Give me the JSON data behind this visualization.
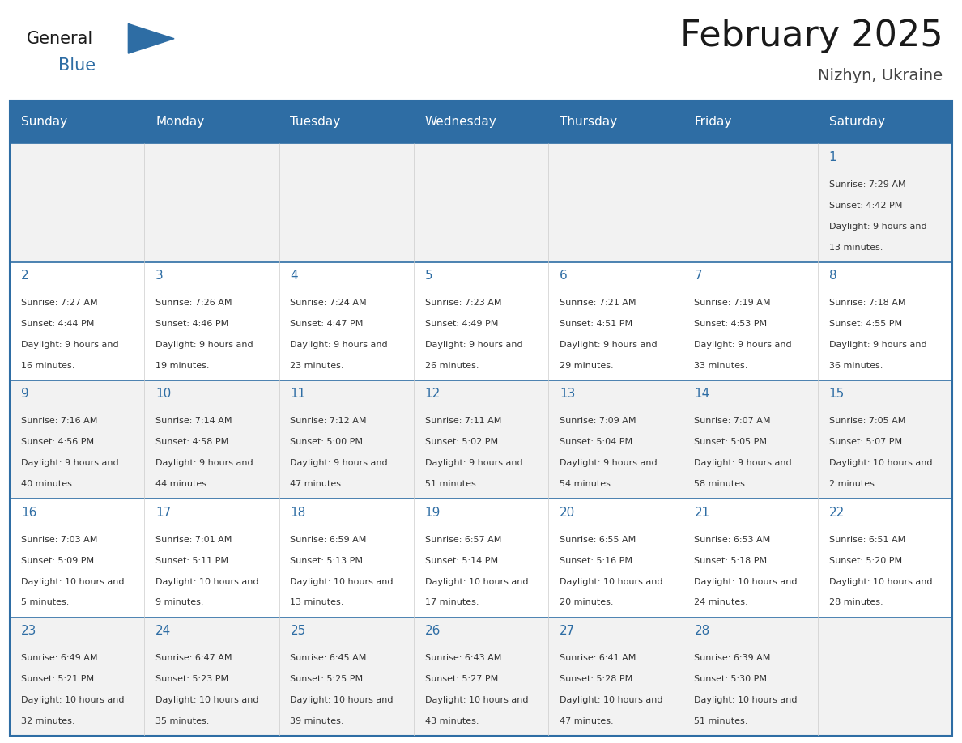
{
  "title": "February 2025",
  "subtitle": "Nizhyn, Ukraine",
  "header_bg": "#2E6DA4",
  "header_text_color": "#FFFFFF",
  "border_color": "#2E6DA4",
  "day_headers": [
    "Sunday",
    "Monday",
    "Tuesday",
    "Wednesday",
    "Thursday",
    "Friday",
    "Saturday"
  ],
  "title_color": "#1a1a1a",
  "subtitle_color": "#444444",
  "day_number_color": "#2E6DA4",
  "cell_text_color": "#333333",
  "weeks": [
    [
      {
        "day": null,
        "sunrise": null,
        "sunset": null,
        "daylight": null
      },
      {
        "day": null,
        "sunrise": null,
        "sunset": null,
        "daylight": null
      },
      {
        "day": null,
        "sunrise": null,
        "sunset": null,
        "daylight": null
      },
      {
        "day": null,
        "sunrise": null,
        "sunset": null,
        "daylight": null
      },
      {
        "day": null,
        "sunrise": null,
        "sunset": null,
        "daylight": null
      },
      {
        "day": null,
        "sunrise": null,
        "sunset": null,
        "daylight": null
      },
      {
        "day": 1,
        "sunrise": "7:29 AM",
        "sunset": "4:42 PM",
        "daylight": "9 hours and 13 minutes."
      }
    ],
    [
      {
        "day": 2,
        "sunrise": "7:27 AM",
        "sunset": "4:44 PM",
        "daylight": "9 hours and 16 minutes."
      },
      {
        "day": 3,
        "sunrise": "7:26 AM",
        "sunset": "4:46 PM",
        "daylight": "9 hours and 19 minutes."
      },
      {
        "day": 4,
        "sunrise": "7:24 AM",
        "sunset": "4:47 PM",
        "daylight": "9 hours and 23 minutes."
      },
      {
        "day": 5,
        "sunrise": "7:23 AM",
        "sunset": "4:49 PM",
        "daylight": "9 hours and 26 minutes."
      },
      {
        "day": 6,
        "sunrise": "7:21 AM",
        "sunset": "4:51 PM",
        "daylight": "9 hours and 29 minutes."
      },
      {
        "day": 7,
        "sunrise": "7:19 AM",
        "sunset": "4:53 PM",
        "daylight": "9 hours and 33 minutes."
      },
      {
        "day": 8,
        "sunrise": "7:18 AM",
        "sunset": "4:55 PM",
        "daylight": "9 hours and 36 minutes."
      }
    ],
    [
      {
        "day": 9,
        "sunrise": "7:16 AM",
        "sunset": "4:56 PM",
        "daylight": "9 hours and 40 minutes."
      },
      {
        "day": 10,
        "sunrise": "7:14 AM",
        "sunset": "4:58 PM",
        "daylight": "9 hours and 44 minutes."
      },
      {
        "day": 11,
        "sunrise": "7:12 AM",
        "sunset": "5:00 PM",
        "daylight": "9 hours and 47 minutes."
      },
      {
        "day": 12,
        "sunrise": "7:11 AM",
        "sunset": "5:02 PM",
        "daylight": "9 hours and 51 minutes."
      },
      {
        "day": 13,
        "sunrise": "7:09 AM",
        "sunset": "5:04 PM",
        "daylight": "9 hours and 54 minutes."
      },
      {
        "day": 14,
        "sunrise": "7:07 AM",
        "sunset": "5:05 PM",
        "daylight": "9 hours and 58 minutes."
      },
      {
        "day": 15,
        "sunrise": "7:05 AM",
        "sunset": "5:07 PM",
        "daylight": "10 hours and 2 minutes."
      }
    ],
    [
      {
        "day": 16,
        "sunrise": "7:03 AM",
        "sunset": "5:09 PM",
        "daylight": "10 hours and 5 minutes."
      },
      {
        "day": 17,
        "sunrise": "7:01 AM",
        "sunset": "5:11 PM",
        "daylight": "10 hours and 9 minutes."
      },
      {
        "day": 18,
        "sunrise": "6:59 AM",
        "sunset": "5:13 PM",
        "daylight": "10 hours and 13 minutes."
      },
      {
        "day": 19,
        "sunrise": "6:57 AM",
        "sunset": "5:14 PM",
        "daylight": "10 hours and 17 minutes."
      },
      {
        "day": 20,
        "sunrise": "6:55 AM",
        "sunset": "5:16 PM",
        "daylight": "10 hours and 20 minutes."
      },
      {
        "day": 21,
        "sunrise": "6:53 AM",
        "sunset": "5:18 PM",
        "daylight": "10 hours and 24 minutes."
      },
      {
        "day": 22,
        "sunrise": "6:51 AM",
        "sunset": "5:20 PM",
        "daylight": "10 hours and 28 minutes."
      }
    ],
    [
      {
        "day": 23,
        "sunrise": "6:49 AM",
        "sunset": "5:21 PM",
        "daylight": "10 hours and 32 minutes."
      },
      {
        "day": 24,
        "sunrise": "6:47 AM",
        "sunset": "5:23 PM",
        "daylight": "10 hours and 35 minutes."
      },
      {
        "day": 25,
        "sunrise": "6:45 AM",
        "sunset": "5:25 PM",
        "daylight": "10 hours and 39 minutes."
      },
      {
        "day": 26,
        "sunrise": "6:43 AM",
        "sunset": "5:27 PM",
        "daylight": "10 hours and 43 minutes."
      },
      {
        "day": 27,
        "sunrise": "6:41 AM",
        "sunset": "5:28 PM",
        "daylight": "10 hours and 47 minutes."
      },
      {
        "day": 28,
        "sunrise": "6:39 AM",
        "sunset": "5:30 PM",
        "daylight": "10 hours and 51 minutes."
      },
      {
        "day": null,
        "sunrise": null,
        "sunset": null,
        "daylight": null
      }
    ]
  ]
}
